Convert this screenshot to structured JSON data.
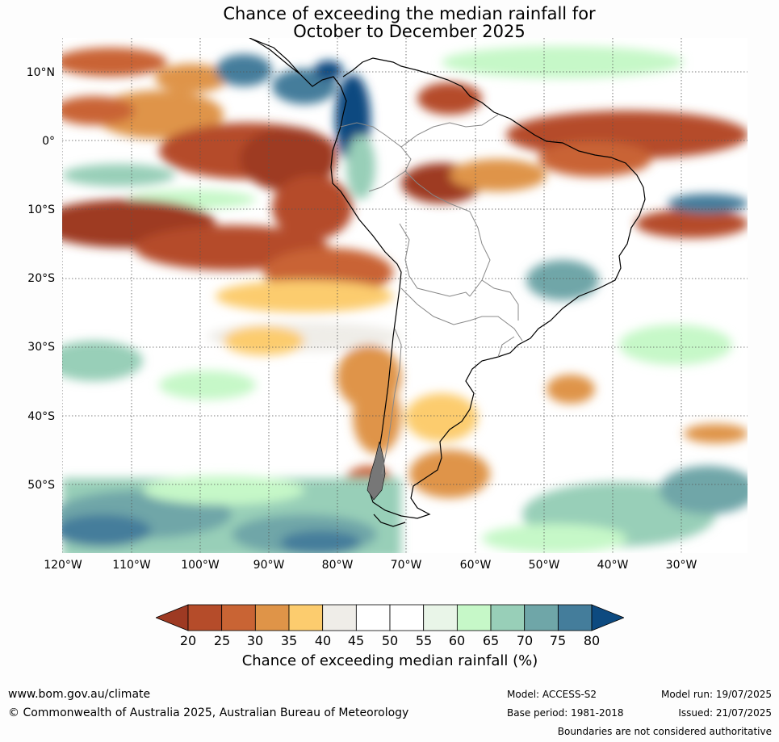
{
  "title": {
    "line1": "Chance of exceeding the median rainfall for",
    "line2": "October to December 2025"
  },
  "axes": {
    "lat_labels": [
      "10°N",
      "0°",
      "10°S",
      "20°S",
      "30°S",
      "40°S",
      "50°S"
    ],
    "lon_labels": [
      "120°W",
      "110°W",
      "100°W",
      "90°W",
      "80°W",
      "70°W",
      "60°W",
      "50°W",
      "40°W",
      "30°W"
    ]
  },
  "colorbar": {
    "title": "Chance of exceeding median rainfall (%)",
    "ticks": [
      "20",
      "25",
      "30",
      "35",
      "40",
      "45",
      "50",
      "55",
      "60",
      "65",
      "70",
      "75",
      "80"
    ],
    "colors": [
      "#9e3a23",
      "#b54c2a",
      "#c96434",
      "#df9448",
      "#fccc6e",
      "#efede8",
      "#ffffff",
      "#ffffff",
      "#e9f5e8",
      "#c6f8c8",
      "#98cfb8",
      "#6fa6a8",
      "#447d9b",
      "#0d4a80"
    ]
  },
  "footer": {
    "url": "www.bom.gov.au/climate",
    "copyright": "© Commonwealth of Australia 2025, Australian Bureau of Meteorology",
    "model": "Model: ACCESS-S2",
    "base_period": "Base period: 1981-2018",
    "model_run": "Model run: 19/07/2025",
    "issued": "Issued: 21/07/2025",
    "disclaimer": "Boundaries are not considered authoritative"
  }
}
